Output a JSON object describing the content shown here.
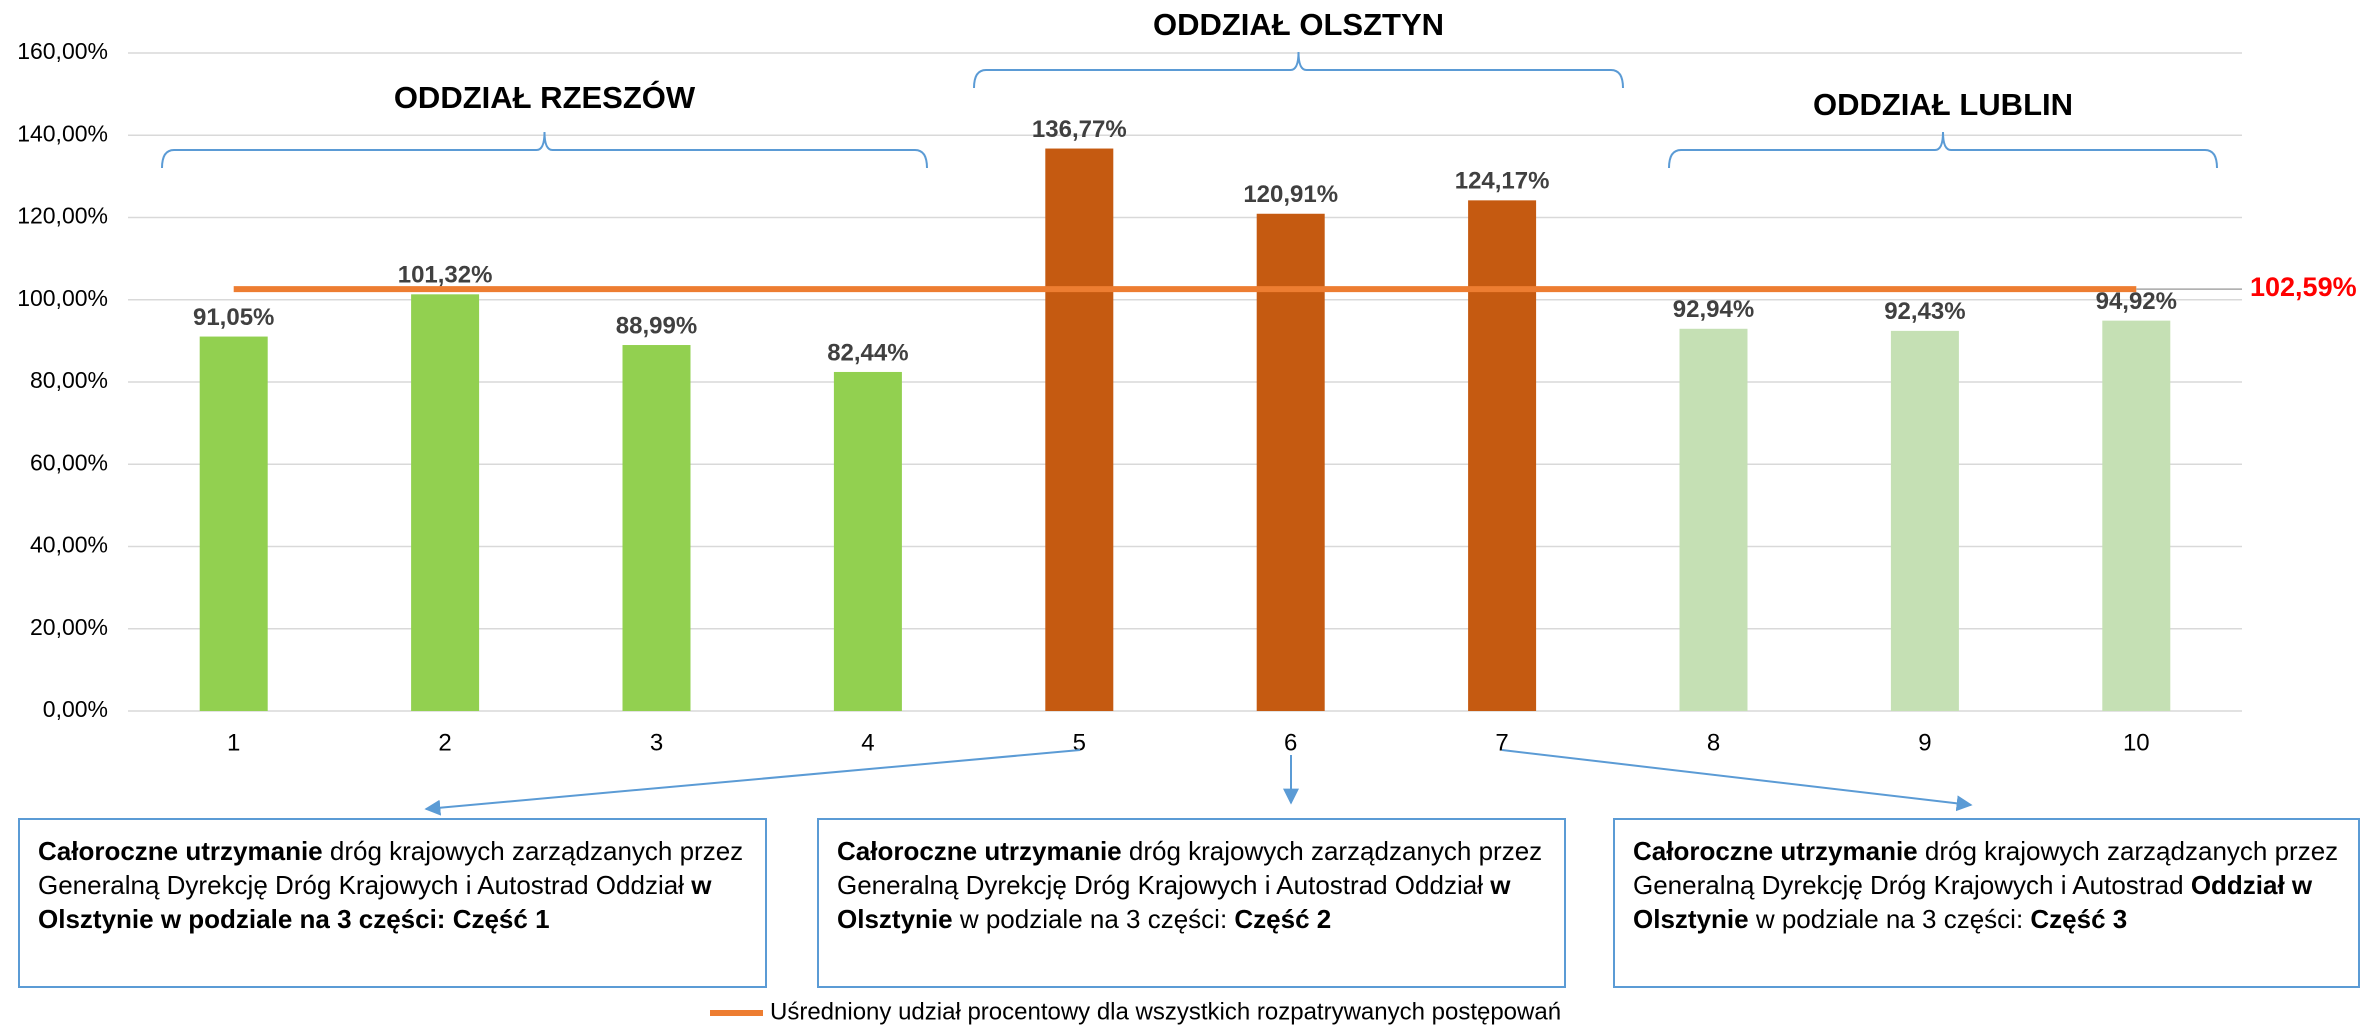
{
  "chart_data": {
    "type": "bar",
    "categories": [
      "1",
      "2",
      "3",
      "4",
      "5",
      "6",
      "7",
      "8",
      "9",
      "10"
    ],
    "values": [
      91.05,
      101.32,
      88.99,
      82.44,
      136.77,
      120.91,
      124.17,
      92.94,
      92.43,
      94.92
    ],
    "value_labels": [
      "91,05%",
      "101,32%",
      "88,99%",
      "82,44%",
      "136,77%",
      "120,91%",
      "124,17%",
      "92,94%",
      "92,43%",
      "94,92%"
    ],
    "colors": [
      "#92d050",
      "#92d050",
      "#92d050",
      "#92d050",
      "#c55a11",
      "#c55a11",
      "#c55a11",
      "#c5e0b4",
      "#c5e0b4",
      "#c5e0b4"
    ],
    "ylim": [
      0,
      160
    ],
    "yticks": [
      {
        "value": 0,
        "label": "0,00%"
      },
      {
        "value": 20,
        "label": "20,00%"
      },
      {
        "value": 40,
        "label": "40,00%"
      },
      {
        "value": 60,
        "label": "60,00%"
      },
      {
        "value": 80,
        "label": "80,00%"
      },
      {
        "value": 100,
        "label": "100,00%"
      },
      {
        "value": 120,
        "label": "120,00%"
      },
      {
        "value": 140,
        "label": "140,00%"
      },
      {
        "value": 160,
        "label": "160,00%"
      }
    ],
    "grid": true,
    "reference_line": {
      "name": "Uśredniony udział procentowy dla wszystkich rozpatrywanych postępowań",
      "value": 102.59,
      "label": "102,59%",
      "color": "#ed7d31",
      "label_color": "#ff0000"
    },
    "groups": [
      "ODDZIAŁ RZESZÓW",
      "ODDZIAŁ OLSZTYN",
      "ODDZIAŁ LUBLIN"
    ],
    "annotations": [
      [
        {
          "text": "Całoroczne utrzymanie",
          "bold": true
        },
        {
          "text": " dróg krajowych zarządzanych przez Generalną Dyrekcję Dróg Krajowych i Autostrad Oddział ",
          "bold": false
        },
        {
          "text": "w Olsztynie w podziale na 3 części: Część 1",
          "bold": true
        }
      ],
      [
        {
          "text": "Całoroczne utrzymanie",
          "bold": true
        },
        {
          "text": " dróg krajowych zarządzanych przez Generalną Dyrekcję Dróg Krajowych i Autostrad Oddział ",
          "bold": false
        },
        {
          "text": "w Olsztynie",
          "bold": true
        },
        {
          "text": " w podziale na 3 części: ",
          "bold": false
        },
        {
          "text": "Część 2",
          "bold": true
        }
      ],
      [
        {
          "text": "Całoroczne utrzymanie",
          "bold": true
        },
        {
          "text": " dróg krajowych zarządzanych przez Generalną Dyrekcję Dróg Krajowych i Autostrad ",
          "bold": false
        },
        {
          "text": "Oddział w Olsztynie",
          "bold": true
        },
        {
          "text": " w podziale na 3 części: ",
          "bold": false
        },
        {
          "text": "Część 3",
          "bold": true
        }
      ]
    ]
  }
}
